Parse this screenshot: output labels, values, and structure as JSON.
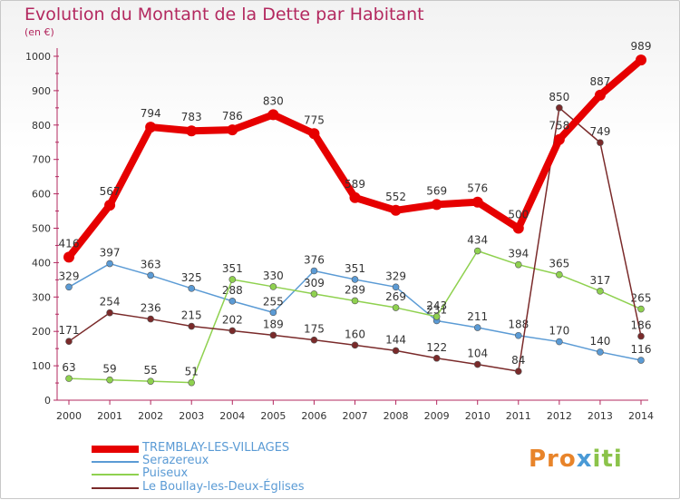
{
  "title": "Evolution du Montant de la Dette par Habitant",
  "unit": "(en €)",
  "logo": {
    "part1": "Pro",
    "part2": "x",
    "part3": "iti"
  },
  "colors": {
    "tremblay": "#e60000",
    "serazereux": "#5b9bd5",
    "puiseux": "#8fd14f",
    "boullay": "#7a2a2a",
    "axis": "#b3285f"
  },
  "chart_data": {
    "type": "line",
    "x": [
      "2000",
      "2001",
      "2002",
      "2003",
      "2004",
      "2005",
      "2006",
      "2007",
      "2008",
      "2009",
      "2010",
      "2011",
      "2012",
      "2013",
      "2014"
    ],
    "ylim": [
      0,
      1000
    ],
    "yticks": [
      "0",
      "100",
      "200",
      "300",
      "400",
      "500",
      "600",
      "700",
      "800",
      "900",
      "1000"
    ],
    "legend_position": "bottom-left",
    "grid": false,
    "series": [
      {
        "name": "TREMBLAY-LES-VILLAGES",
        "key": "tremblay",
        "values": [
          416,
          567,
          794,
          783,
          786,
          830,
          775,
          589,
          552,
          569,
          576,
          500,
          758,
          887,
          989
        ],
        "labels": [
          "416",
          "567",
          "794",
          "783",
          "786",
          "830",
          "775",
          "589",
          "552",
          "569",
          "576",
          "500",
          "758",
          "887",
          "989"
        ]
      },
      {
        "name": "Serazereux",
        "key": "serazereux",
        "values": [
          329,
          397,
          363,
          325,
          288,
          255,
          376,
          351,
          329,
          231,
          211,
          188,
          170,
          140,
          116
        ],
        "labels": [
          "329",
          "397",
          "363",
          "325",
          "288",
          "255",
          "376",
          "351",
          "329",
          "231",
          "211",
          "188",
          "170",
          "140",
          "116"
        ]
      },
      {
        "name": "Puiseux",
        "key": "puiseux",
        "values": [
          63,
          59,
          55,
          51,
          351,
          330,
          309,
          289,
          269,
          243,
          434,
          394,
          365,
          317,
          265
        ],
        "labels": [
          "63",
          "59",
          "55",
          "51",
          "351",
          "330",
          "309",
          "289",
          "269",
          "243",
          "434",
          "394",
          "365",
          "317",
          "265"
        ]
      },
      {
        "name": "Le Boullay-les-Deux-Églises",
        "key": "boullay",
        "values": [
          171,
          254,
          236,
          215,
          202,
          189,
          175,
          160,
          144,
          122,
          104,
          84,
          850,
          749,
          186
        ],
        "labels": [
          "171",
          "254",
          "236",
          "215",
          "202",
          "189",
          "175",
          "160",
          "144",
          "122",
          "104",
          "84",
          "850",
          "749",
          "186"
        ]
      }
    ]
  }
}
